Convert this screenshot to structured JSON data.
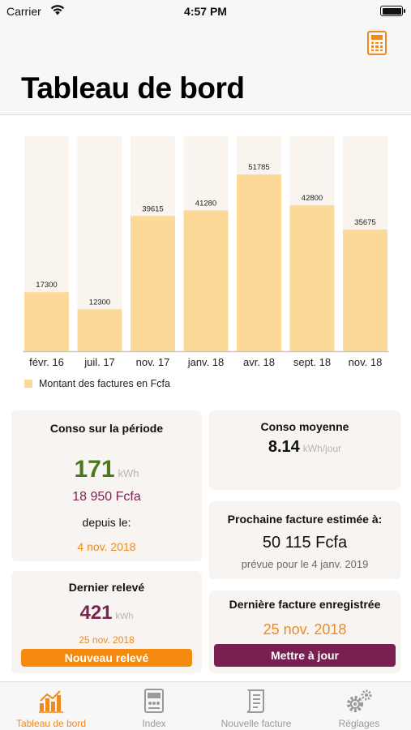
{
  "status_bar": {
    "carrier": "Carrier",
    "time": "4:57 PM"
  },
  "header": {
    "title": "Tableau de bord",
    "action_icon": "calculator-icon"
  },
  "colors": {
    "accent": "#f08a1c",
    "bar": "#fcd998",
    "track": "#faf4ee",
    "purple": "#7a1f52",
    "green": "#4a7a1e"
  },
  "chart_data": {
    "type": "bar",
    "categories": [
      "févr. 16",
      "juil. 17",
      "nov. 17",
      "janv. 18",
      "avr. 18",
      "sept. 18",
      "nov. 18"
    ],
    "series": [
      {
        "name": "Montant des factures en Fcfa",
        "values": [
          17300,
          12300,
          39615,
          41280,
          51785,
          42800,
          35675
        ]
      }
    ],
    "ylim": [
      0,
      63000
    ],
    "legend": "bottom-left",
    "grid": false
  },
  "conso_periode": {
    "title": "Conso sur la période",
    "value": "171",
    "unit": "kWh",
    "amount": "18 950 Fcfa",
    "since_label": "depuis le:",
    "since_date": "4 nov. 2018"
  },
  "dernier_releve": {
    "title": "Dernier relevé",
    "value": "421",
    "unit": "kWh",
    "date": "25 nov. 2018",
    "button": "Nouveau relevé"
  },
  "conso_moyenne": {
    "title": "Conso moyenne",
    "value": "8.14",
    "unit": "kWh/jour"
  },
  "prochaine_facture": {
    "title": "Prochaine facture estimée à:",
    "amount": "50 115 Fcfa",
    "note": "prévue pour le 4 janv. 2019"
  },
  "derniere_facture": {
    "title": "Dernière facture enregistrée",
    "date": "25 nov. 2018",
    "button": "Mettre à jour"
  },
  "tabs": [
    {
      "label": "Tableau de bord",
      "icon": "bar-chart-icon",
      "active": true
    },
    {
      "label": "Index",
      "icon": "meter-icon",
      "active": false
    },
    {
      "label": "Nouvelle facture",
      "icon": "invoice-icon",
      "active": false
    },
    {
      "label": "Réglages",
      "icon": "gears-icon",
      "active": false
    }
  ]
}
